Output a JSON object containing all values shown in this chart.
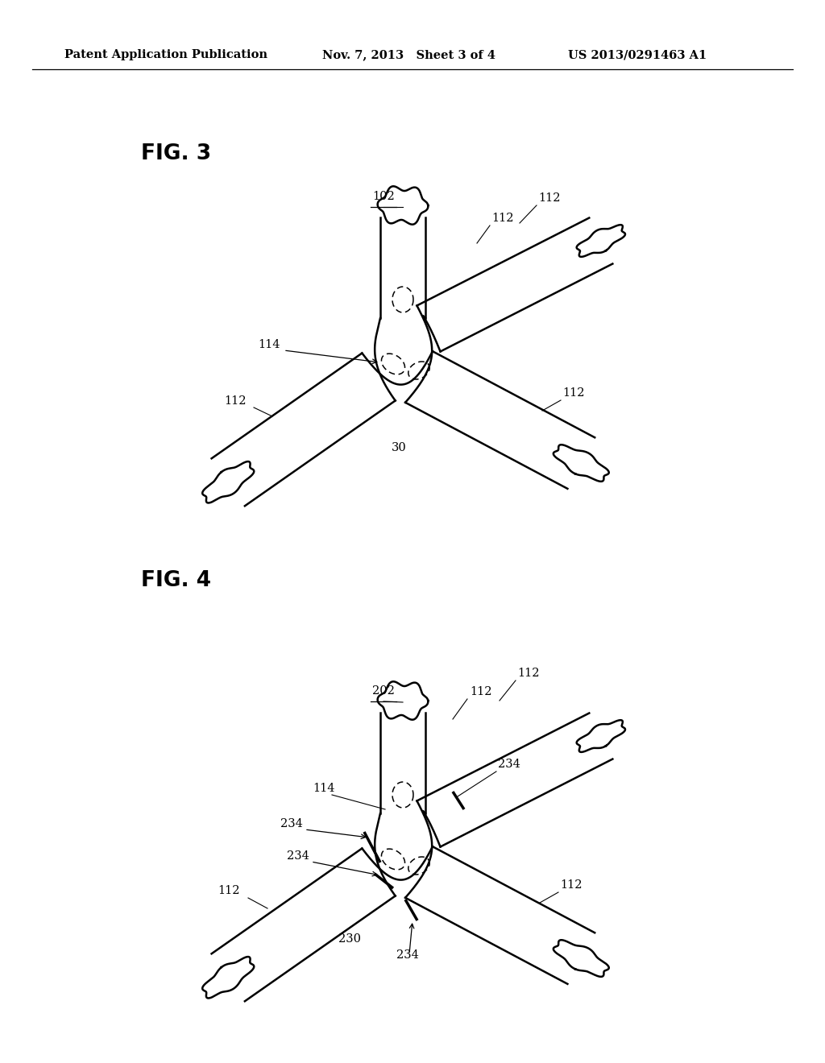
{
  "bg_color": "#ffffff",
  "line_color": "#000000",
  "header_left": "Patent Application Publication",
  "header_mid": "Nov. 7, 2013   Sheet 3 of 4",
  "header_right": "US 2013/0291463 A1",
  "fig3_label": "FIG. 3",
  "fig3_ref": "102",
  "fig4_label": "FIG. 4",
  "fig4_ref": "202",
  "lw": 1.8,
  "dlw": 1.1
}
